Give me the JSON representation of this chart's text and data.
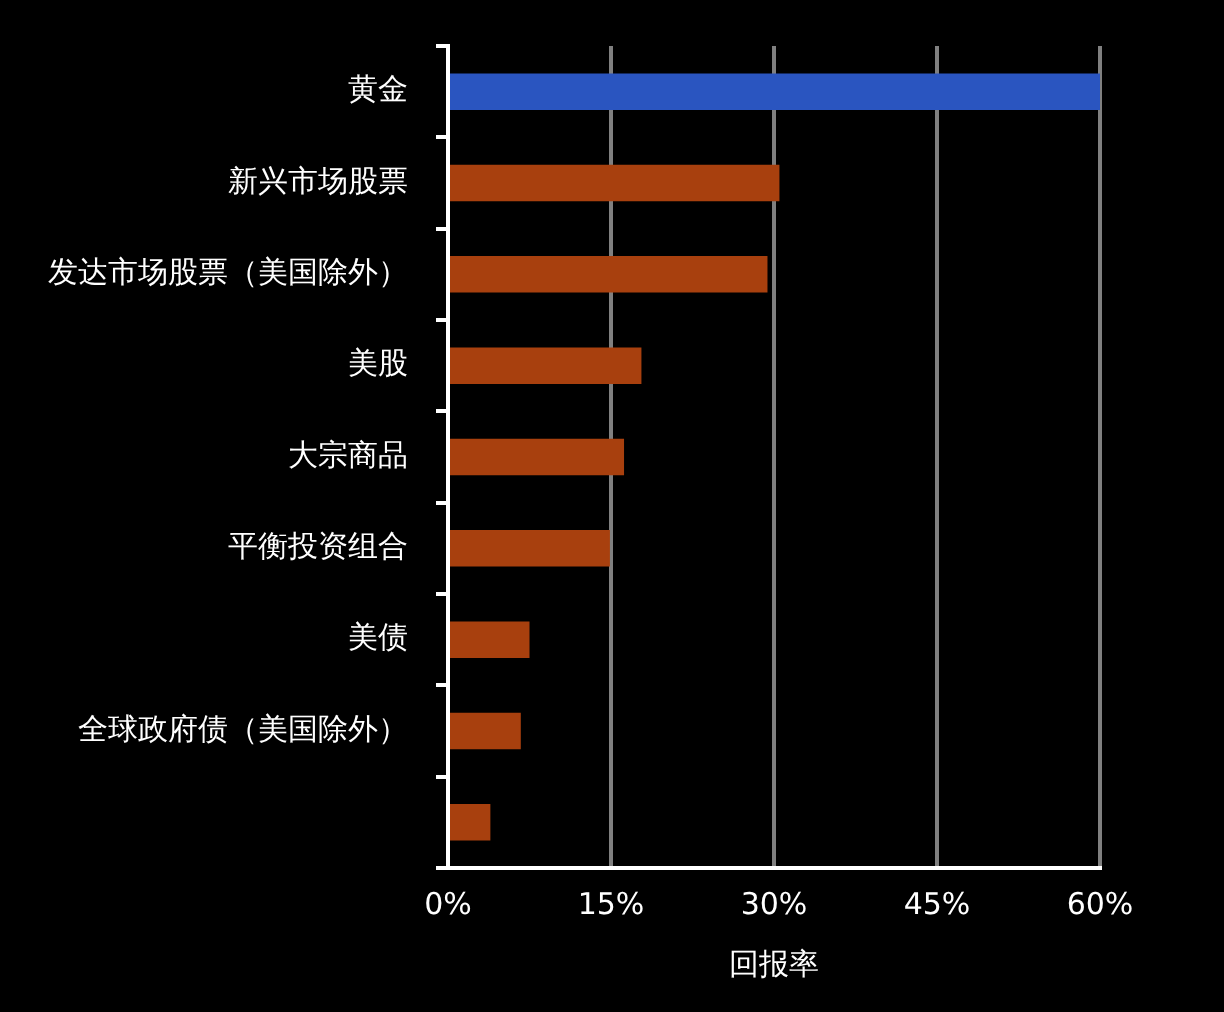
{
  "chart_data": {
    "type": "bar",
    "orientation": "horizontal",
    "xlabel": "回报率",
    "categories": [
      "黄金",
      "新兴市场股票",
      "发达市场股票（美国除外）",
      "美股",
      "大宗商品",
      "平衡投资组合",
      "美债",
      "全球政府债（美国除外）",
      null
    ],
    "values": [
      60,
      30.5,
      29.4,
      17.8,
      16.2,
      14.9,
      7.5,
      6.7,
      3.9
    ],
    "colors": [
      "#2a55c0",
      "#a8400e",
      "#a8400e",
      "#a8400e",
      "#a8400e",
      "#a8400e",
      "#a8400e",
      "#a8400e",
      "#a8400e"
    ],
    "xlim": [
      0,
      60
    ],
    "xticks": [
      {
        "value": 0,
        "label": "0%"
      },
      {
        "value": 15,
        "label": "15%"
      },
      {
        "value": 30,
        "label": "30%"
      },
      {
        "value": 45,
        "label": "45%"
      },
      {
        "value": 60,
        "label": "60%"
      }
    ],
    "grid": "x",
    "legend": false
  }
}
